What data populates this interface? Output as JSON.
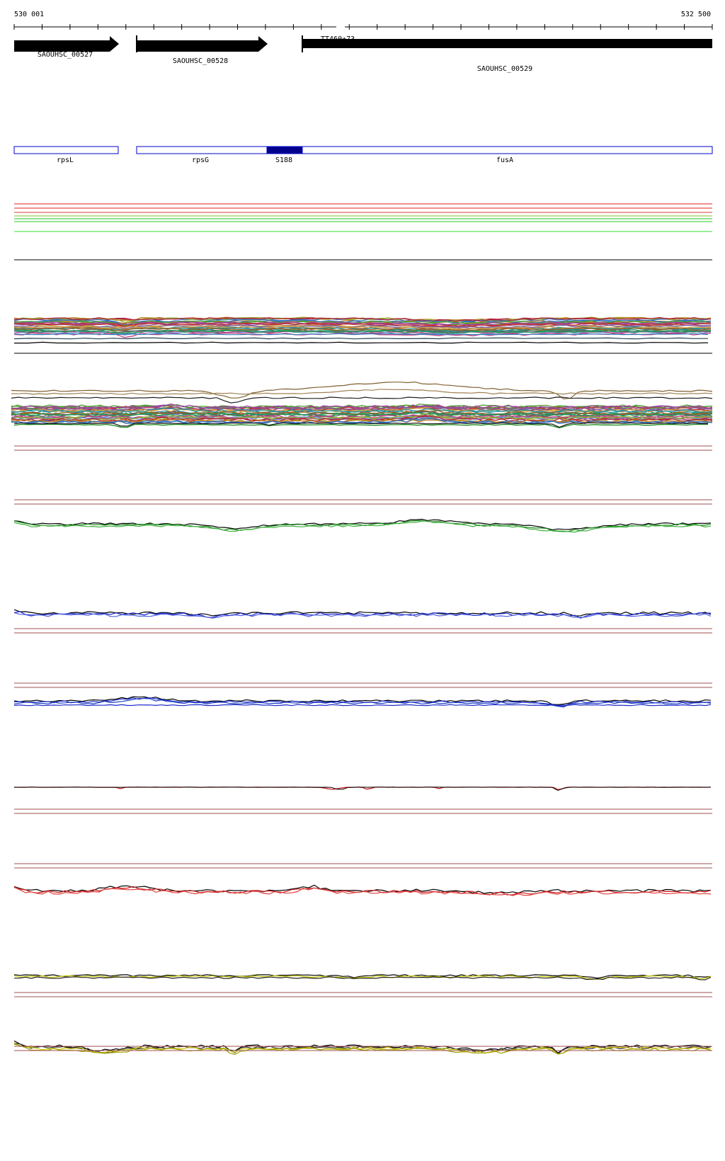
{
  "ruler": {
    "start_label": "530 001",
    "end_label": "532 500"
  },
  "genes": [
    {
      "id": "SAOUHSC_00527",
      "label": "SAOUHSC_00527"
    },
    {
      "id": "SAOUHSC_00528",
      "label": "SAOUHSC_00528"
    },
    {
      "id": "SAOUHSC_00529",
      "label": "SAOUHSC_00529"
    }
  ],
  "feature_label_top": "TT460+73",
  "annotations": [
    {
      "id": "rpsL",
      "label": "rpsL",
      "filled": false
    },
    {
      "id": "rpsG",
      "label": "rpsG",
      "filled": false
    },
    {
      "id": "S188",
      "label": "S188",
      "filled": true
    },
    {
      "id": "fusA",
      "label": "fusA",
      "filled": false
    }
  ],
  "colors": {
    "gene_arrow": "#000000",
    "annotation_stroke": "#0000cc",
    "annotation_fill": "#00008b",
    "track_border": "#a05050",
    "green_track": "#1a8c1a",
    "blue_track": "#1a2acc",
    "red_track": "#cc1a1a",
    "yellow_track": "#c8c800"
  }
}
